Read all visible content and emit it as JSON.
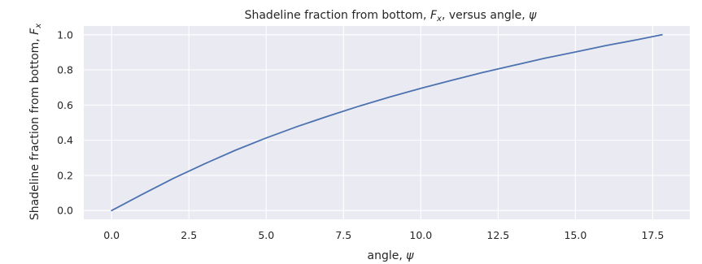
{
  "chart_data": {
    "type": "line",
    "title": "Shadeline fraction from bottom, Fₓ, versus angle, ψ",
    "title_parts": {
      "prefix": "Shadeline fraction from bottom, ",
      "var": "F",
      "sub": "x",
      "middle": ", versus angle, ",
      "angle": "ψ"
    },
    "xlabel": "angle, ψ",
    "xlabel_parts": {
      "text": "angle, ",
      "angle": "ψ"
    },
    "ylabel": "Shadeline fraction from bottom, Fₓ",
    "ylabel_parts": {
      "text": "Shadeline fraction from bottom, ",
      "var": "F",
      "sub": "x"
    },
    "xlim": [
      -0.9,
      18.7
    ],
    "ylim": [
      -0.05,
      1.05
    ],
    "xticks": [
      0.0,
      2.5,
      5.0,
      7.5,
      10.0,
      12.5,
      15.0,
      17.5
    ],
    "xtick_labels": [
      "0.0",
      "2.5",
      "5.0",
      "7.5",
      "10.0",
      "12.5",
      "15.0",
      "17.5"
    ],
    "yticks": [
      0.0,
      0.2,
      0.4,
      0.6,
      0.8,
      1.0
    ],
    "ytick_labels": [
      "0.0",
      "0.2",
      "0.4",
      "0.6",
      "0.8",
      "1.0"
    ],
    "grid": true,
    "background": "#eaeaf2",
    "grid_color": "#ffffff",
    "line_color": "#4c72b0",
    "series": [
      {
        "x": [
          0,
          1,
          2,
          3,
          4,
          5,
          6,
          7,
          8,
          9,
          10,
          11,
          12,
          13,
          14,
          15,
          16,
          17,
          17.8
        ],
        "y": [
          0.0,
          0.093,
          0.183,
          0.265,
          0.343,
          0.413,
          0.478,
          0.537,
          0.594,
          0.646,
          0.695,
          0.741,
          0.785,
          0.826,
          0.866,
          0.902,
          0.939,
          0.972,
          1.0
        ]
      }
    ]
  }
}
